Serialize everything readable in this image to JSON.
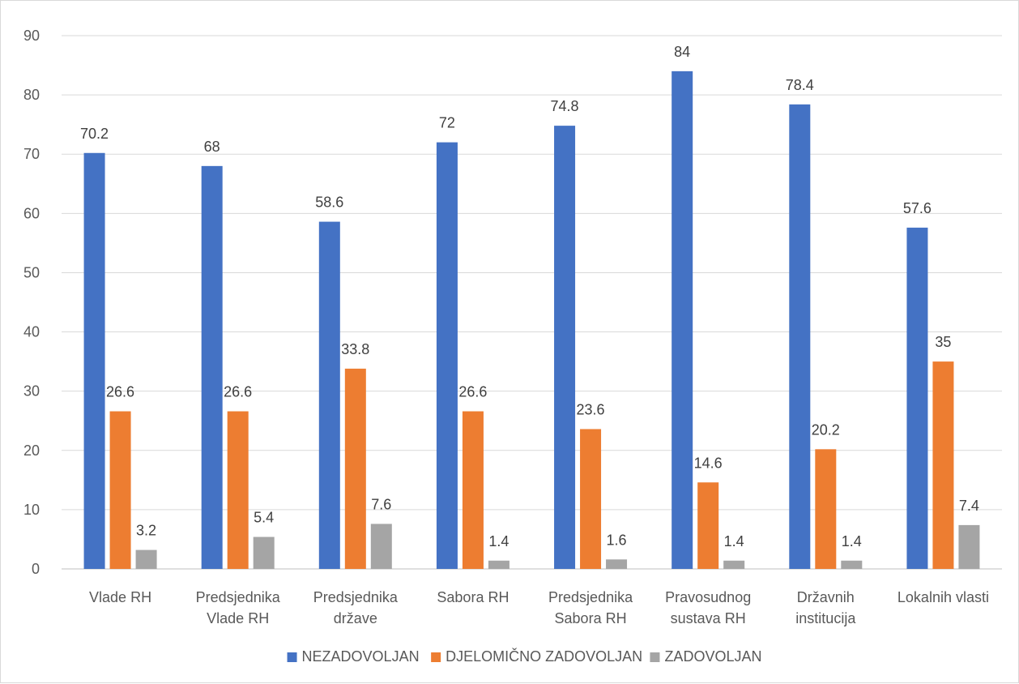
{
  "chart_data": {
    "type": "bar",
    "categories": [
      [
        "Vlade RH"
      ],
      [
        "Predsjednika",
        "Vlade RH"
      ],
      [
        "Predsjednika",
        "države"
      ],
      [
        "Sabora RH"
      ],
      [
        "Predsjednika",
        "Sabora RH"
      ],
      [
        "Pravosudnog",
        "sustava RH"
      ],
      [
        "Državnih",
        "institucija"
      ],
      [
        "Lokalnih vlasti"
      ]
    ],
    "series": [
      {
        "name": "NEZADOVOLJAN",
        "color": "#4472c4",
        "values": [
          70.2,
          68,
          58.6,
          72,
          74.8,
          84,
          78.4,
          57.6
        ]
      },
      {
        "name": "DJELOMIČNO ZADOVOLJAN",
        "color": "#ed7d31",
        "values": [
          26.6,
          26.6,
          33.8,
          26.6,
          23.6,
          14.6,
          20.2,
          35
        ]
      },
      {
        "name": "ZADOVOLJAN",
        "color": "#a5a5a5",
        "values": [
          3.2,
          5.4,
          7.6,
          1.4,
          1.6,
          1.4,
          1.4,
          7.4
        ]
      }
    ],
    "y_ticks": [
      0,
      10,
      20,
      30,
      40,
      50,
      60,
      70,
      80,
      90
    ],
    "ylim": [
      0,
      90
    ],
    "grid": true,
    "legend_position": "bottom",
    "title": "",
    "xlabel": "",
    "ylabel": ""
  }
}
